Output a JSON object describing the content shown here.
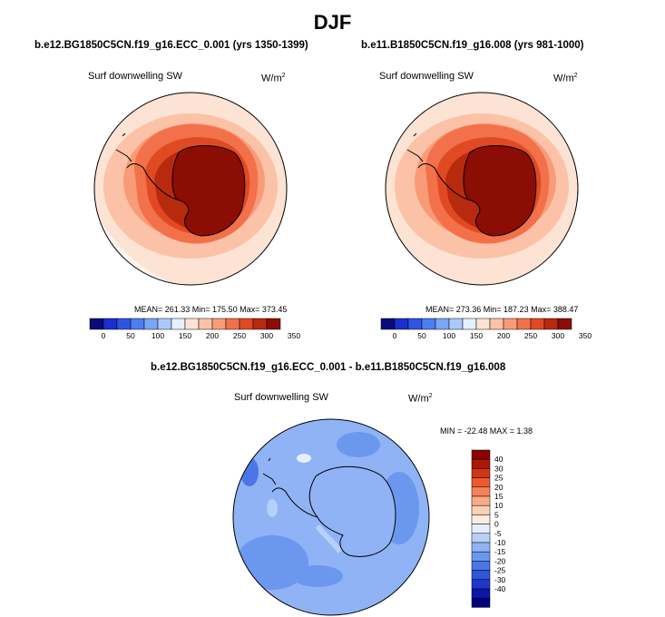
{
  "figure": {
    "season": "DJF",
    "colors": {
      "abs_levels": [
        "#0a0a7a",
        "#1a2fcf",
        "#2f55e0",
        "#4b7ef0",
        "#78a6f8",
        "#aac9fb",
        "#e4efff",
        "#fde3d3",
        "#fbc2a7",
        "#f89c78",
        "#f2714a",
        "#e04a23",
        "#b82a0e",
        "#8c0d04"
      ],
      "diff_levels": [
        "#00007d",
        "#0a16a8",
        "#1e37c8",
        "#2f55d9",
        "#4b76e6",
        "#6c97ef",
        "#8fb3f5",
        "#b7d0fa",
        "#e6efff",
        "#fdecdf",
        "#fbd0b5",
        "#f9ab86",
        "#f5825a",
        "#eb5b2e",
        "#d03614",
        "#a91908",
        "#8b0101"
      ],
      "land_contour": "#000000"
    },
    "panels": [
      {
        "title": "b.e12.BG1850C5CN.f19_g16.ECC_0.001 (yrs 1350-1399)",
        "variable": "Surf downwelling SW",
        "units": "W/m",
        "units_power": "2",
        "stats_text": "MEAN= 261.33  Min= 175.50  Max= 373.45"
      },
      {
        "title": "b.e11.B1850C5CN.f19_g16.008 (yrs 981-1000)",
        "variable": "Surf downwelling SW",
        "units": "W/m",
        "units_power": "2",
        "stats_text": "MEAN= 273.36  Min= 187.23  Max= 388.47"
      },
      {
        "title": "b.e12.BG1850C5CN.f19_g16.ECC_0.001 - b.e11.B1850C5CN.f19_g16.008",
        "variable": "Surf downwelling SW",
        "units": "W/m",
        "units_power": "2",
        "stats_text": "MIN = -22.48 MAX =   1.38"
      }
    ]
  },
  "chart_data": [
    {
      "type": "heatmap",
      "projection": "south polar stereographic",
      "title": "b.e12.BG1850C5CN.f19_g16.ECC_0.001 (yrs 1350-1399)",
      "variable": "Surf downwelling SW",
      "units": "W/m2",
      "mean": 261.33,
      "min": 175.5,
      "max": 373.45,
      "colorbar": {
        "orientation": "horizontal",
        "range": [
          0,
          350
        ],
        "step": 25,
        "tick_labels": [
          "0",
          "50",
          "100",
          "150",
          "200",
          "250",
          "300",
          "350"
        ]
      }
    },
    {
      "type": "heatmap",
      "projection": "south polar stereographic",
      "title": "b.e11.B1850C5CN.f19_g16.008 (yrs 981-1000)",
      "variable": "Surf downwelling SW",
      "units": "W/m2",
      "mean": 273.36,
      "min": 187.23,
      "max": 388.47,
      "colorbar": {
        "orientation": "horizontal",
        "range": [
          0,
          350
        ],
        "step": 25,
        "tick_labels": [
          "0",
          "50",
          "100",
          "150",
          "200",
          "250",
          "300",
          "350"
        ]
      }
    },
    {
      "type": "heatmap",
      "projection": "south polar stereographic",
      "title": "b.e12.BG1850C5CN.f19_g16.ECC_0.001 - b.e11.B1850C5CN.f19_g16.008",
      "variable": "Surf downwelling SW",
      "units": "W/m2",
      "min": -22.48,
      "max": 1.38,
      "colorbar": {
        "orientation": "vertical",
        "tick_labels": [
          "40",
          "30",
          "25",
          "20",
          "15",
          "10",
          "5",
          "0",
          "-5",
          "-10",
          "-15",
          "-20",
          "-25",
          "-30",
          "-40"
        ]
      }
    }
  ]
}
